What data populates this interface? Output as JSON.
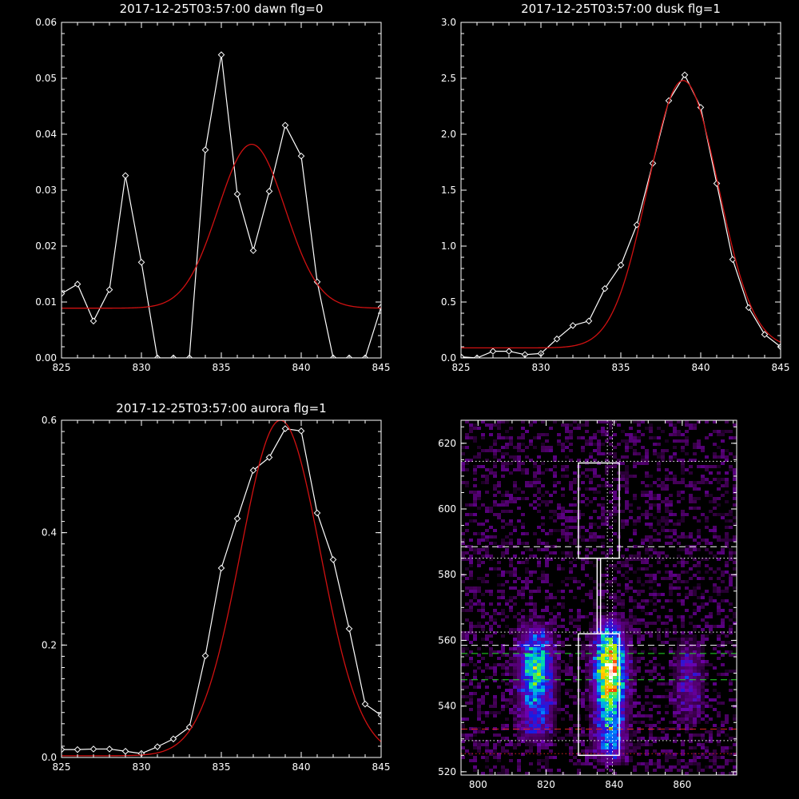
{
  "chart_data": [
    {
      "type": "line",
      "title": "2017-12-25T03:57:00 dawn flg=0",
      "xlim": [
        825,
        845
      ],
      "ylim": [
        0,
        0.06
      ],
      "xticks": [
        "825",
        "830",
        "835",
        "840",
        "845"
      ],
      "yticks": [
        "0.00",
        "0.01",
        "0.02",
        "0.03",
        "0.04",
        "0.05",
        "0.06"
      ],
      "series": [
        {
          "color": "#ffffff",
          "marker": "diamond",
          "x": [
            825,
            826,
            827,
            828,
            829,
            830,
            831,
            832,
            833,
            834,
            835,
            836,
            837,
            838,
            839,
            840,
            841,
            842,
            843,
            844,
            845
          ],
          "y": [
            0.0115,
            0.0132,
            0.0066,
            0.0122,
            0.0326,
            0.0171,
            0.0,
            0.0,
            0.0,
            0.0372,
            0.0542,
            0.0293,
            0.0192,
            0.0298,
            0.0416,
            0.0361,
            0.0136,
            0.0,
            0.0,
            0.0,
            0.0091
          ]
        },
        {
          "color": "#d11111",
          "marker": "none",
          "fit": "gaussian",
          "center": 836.9,
          "sigma": 2.1,
          "amplitude": 0.0293,
          "baseline": 0.0089
        }
      ]
    },
    {
      "type": "line",
      "title": "2017-12-25T03:57:00 dusk flg=1",
      "xlim": [
        825,
        845
      ],
      "ylim": [
        0,
        3.0
      ],
      "xticks": [
        "825",
        "830",
        "835",
        "840",
        "845"
      ],
      "yticks": [
        "0.0",
        "0.5",
        "1.0",
        "1.5",
        "2.0",
        "2.5",
        "3.0"
      ],
      "series": [
        {
          "color": "#ffffff",
          "marker": "diamond",
          "x": [
            825,
            826,
            827,
            828,
            829,
            830,
            831,
            832,
            833,
            834,
            835,
            836,
            837,
            838,
            839,
            840,
            841,
            842,
            843,
            844,
            845
          ],
          "y": [
            0.01,
            0.0,
            0.06,
            0.06,
            0.03,
            0.04,
            0.17,
            0.29,
            0.33,
            0.62,
            0.83,
            1.19,
            1.74,
            2.3,
            2.53,
            2.24,
            1.56,
            0.88,
            0.45,
            0.21,
            0.1
          ]
        },
        {
          "color": "#d11111",
          "marker": "none",
          "fit": "gaussian",
          "center": 838.9,
          "sigma": 2.2,
          "amplitude": 2.39,
          "baseline": 0.09
        }
      ]
    },
    {
      "type": "line",
      "title": "2017-12-25T03:57:00 aurora flg=1",
      "xlim": [
        825,
        845
      ],
      "ylim": [
        0,
        0.6
      ],
      "xticks": [
        "825",
        "830",
        "835",
        "840",
        "845"
      ],
      "yticks": [
        "0.0",
        "0.2",
        "0.4",
        "0.6"
      ],
      "series": [
        {
          "color": "#ffffff",
          "marker": "diamond",
          "x": [
            825,
            826,
            827,
            828,
            829,
            830,
            831,
            832,
            833,
            834,
            835,
            836,
            837,
            838,
            839,
            840,
            841,
            842,
            843,
            844,
            845
          ],
          "y": [
            0.014,
            0.014,
            0.015,
            0.015,
            0.011,
            0.007,
            0.019,
            0.033,
            0.054,
            0.181,
            0.337,
            0.425,
            0.511,
            0.534,
            0.585,
            0.581,
            0.435,
            0.352,
            0.229,
            0.095,
            0.075
          ]
        },
        {
          "color": "#d11111",
          "marker": "none",
          "fit": "gaussian",
          "center": 838.7,
          "sigma": 2.5,
          "amplitude": 0.597,
          "baseline": 0.003
        }
      ]
    },
    {
      "type": "heatmap",
      "colormap": "rainbow-on-black",
      "xlim": [
        795,
        876
      ],
      "ylim": [
        519,
        627
      ],
      "xticks": [
        "800",
        "820",
        "840",
        "860"
      ],
      "yticks": [
        "520",
        "540",
        "560",
        "580",
        "600",
        "620"
      ],
      "emission_bands": [
        {
          "x_center": 817,
          "x_width": 3.3,
          "y_min": 530,
          "y_max": 564,
          "y_peak": 551,
          "peak": 0.64
        },
        {
          "x_center": 838.8,
          "x_width": 3.0,
          "y_min": 524,
          "y_max": 566,
          "y_peak": 551,
          "peak": 1.0
        },
        {
          "x_center": 862,
          "x_width": 3.0,
          "y_min": 535,
          "y_max": 560,
          "y_peak": 548,
          "peak": 0.22
        }
      ],
      "background_level": 0.12,
      "boxes": [
        {
          "color": "#ffffff",
          "x": [
            829.5,
            841.5
          ],
          "y": [
            525,
            562
          ]
        },
        {
          "color": "#ffffff",
          "x": [
            829.5,
            841.5
          ],
          "y": [
            585,
            614
          ]
        }
      ],
      "connector_x": [
        835,
        836
      ],
      "hlines": [
        {
          "y": 614.5,
          "color": "#ffffff",
          "style": "dotted"
        },
        {
          "y": 588.5,
          "color": "#ffffff",
          "style": "dashed"
        },
        {
          "y": 585,
          "color": "#ffffff",
          "style": "dotted"
        },
        {
          "y": 562.5,
          "color": "#ffffff",
          "style": "dotted"
        },
        {
          "y": 558.5,
          "color": "#ffffff",
          "style": "dashed"
        },
        {
          "y": 556,
          "color": "#22dd22",
          "style": "dashed"
        },
        {
          "y": 548,
          "color": "#22dd22",
          "style": "dashed"
        },
        {
          "y": 533,
          "color": "#dd2222",
          "style": "dashed"
        },
        {
          "y": 529.5,
          "color": "#ffffff",
          "style": "dotted"
        },
        {
          "y": 525.5,
          "color": "#dd2222",
          "style": "dotted"
        }
      ],
      "vlines": [
        {
          "x": 838,
          "color": "#ffffff",
          "style": "dotted"
        },
        {
          "x": 839.5,
          "color": "#ffffff",
          "style": "dotted"
        }
      ]
    }
  ]
}
